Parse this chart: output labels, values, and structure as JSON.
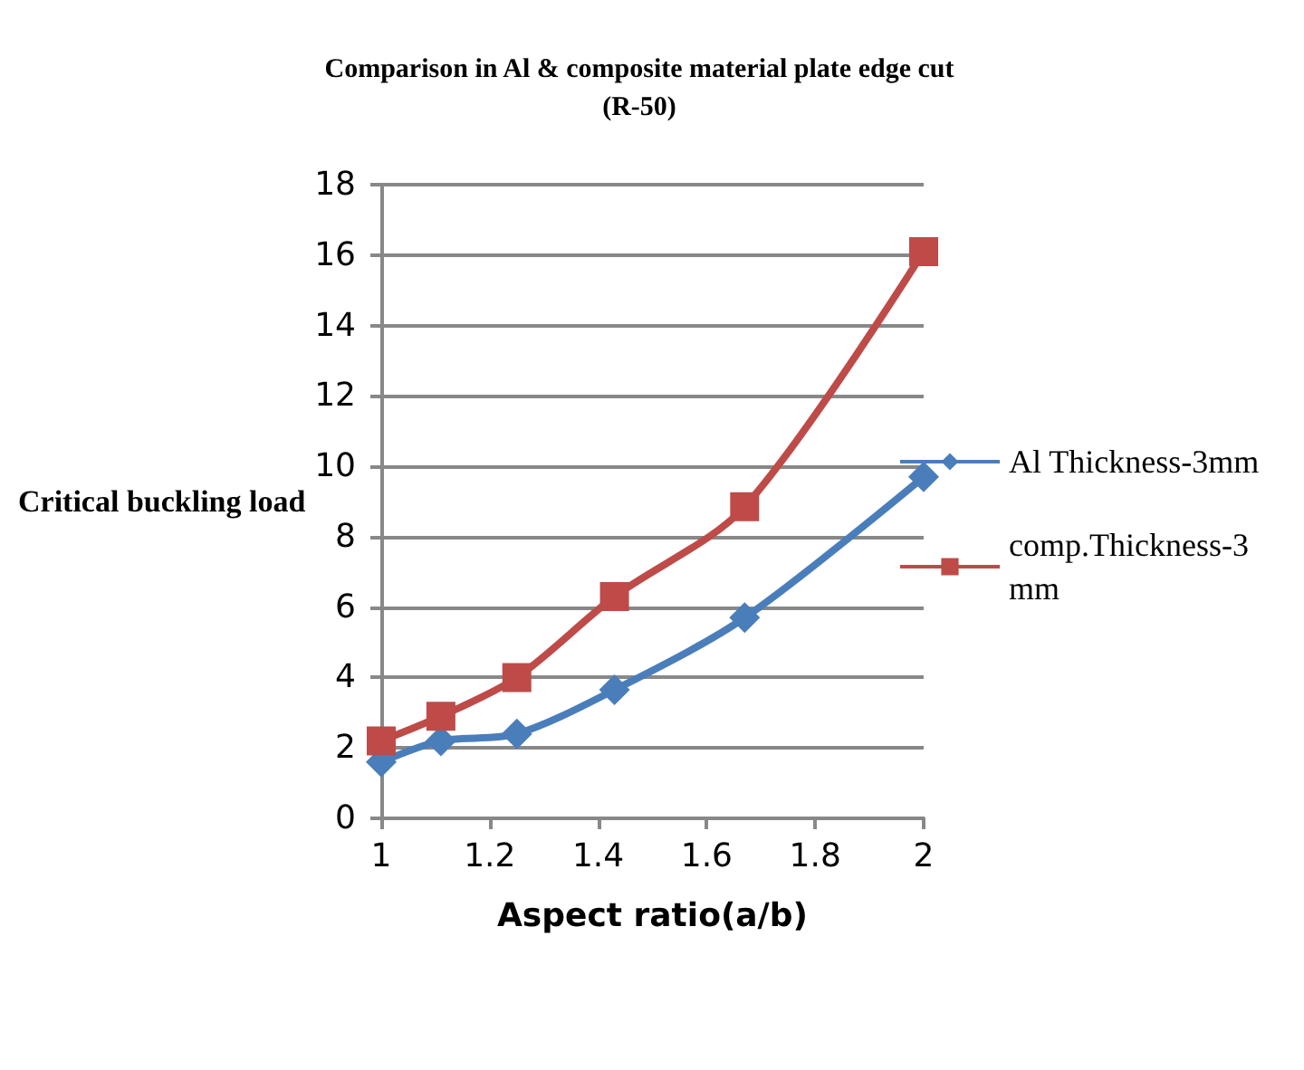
{
  "chart_data": {
    "type": "line",
    "title": "Comparison in Al & composite material plate edge cut",
    "subtitle": "(R-50)",
    "xlabel": "Aspect ratio(a/b)",
    "ylabel": "Critical buckling load",
    "xlim": [
      1,
      2
    ],
    "xticks": [
      1,
      {
        "value": 1.2,
        "label": "1.2"
      },
      {
        "value": 1.4,
        "label": "1.4"
      },
      {
        "value": 1.6,
        "label": "1.6"
      },
      {
        "value": 1.8,
        "label": "1.8"
      },
      2
    ],
    "ylim": [
      0,
      18
    ],
    "yticks": [
      0,
      2,
      4,
      6,
      8,
      10,
      12,
      14,
      16,
      18
    ],
    "grid": "y",
    "legend": "right",
    "series": [
      {
        "name": "Al Thickness-3mm",
        "color": "#4a7ebb",
        "marker": "diamond",
        "x": [
          1,
          1.11,
          1.25,
          1.43,
          1.67,
          2
        ],
        "values": [
          1.6,
          2.2,
          2.4,
          3.65,
          5.7,
          9.7
        ]
      },
      {
        "name": "comp.Thickness-3mm",
        "color": "#be4b48",
        "marker": "square",
        "x": [
          1,
          1.11,
          1.25,
          1.43,
          1.67,
          2
        ],
        "values": [
          2.2,
          2.9,
          4.0,
          6.3,
          8.85,
          16.1
        ]
      }
    ]
  }
}
